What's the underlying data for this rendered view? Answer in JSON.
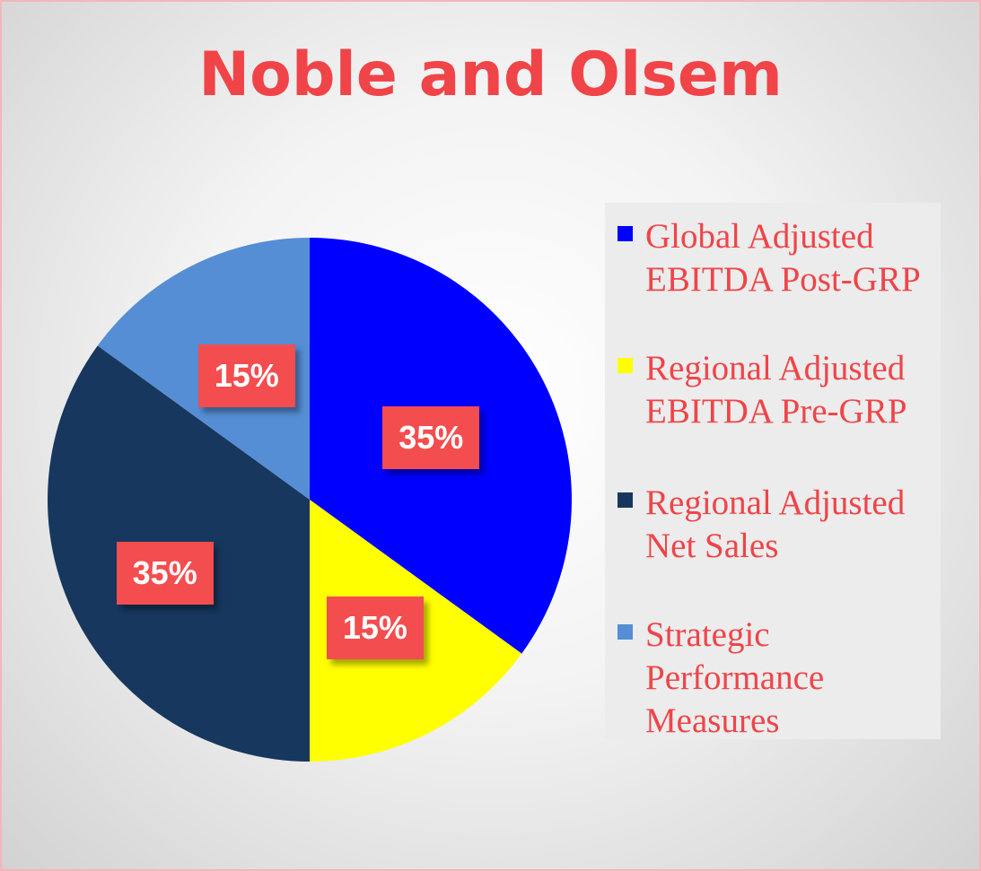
{
  "chart_data": {
    "type": "pie",
    "title": "Noble and Olsem",
    "slices": [
      {
        "label": "Global Adjusted EBITDA Post-GRP",
        "value": 35,
        "display": "35%",
        "color": "#0000ff"
      },
      {
        "label": "Regional Adjusted EBITDA Pre-GRP",
        "value": 15,
        "display": "15%",
        "color": "#ffff00"
      },
      {
        "label": "Regional Adjusted Net Sales",
        "value": 35,
        "display": "35%",
        "color": "#17375e"
      },
      {
        "label": "Strategic Performance Measures",
        "value": 15,
        "display": "15%",
        "color": "#558ed5"
      }
    ],
    "legend_position": "right",
    "label_background": "#f44d4f",
    "title_color": "#f04448"
  }
}
